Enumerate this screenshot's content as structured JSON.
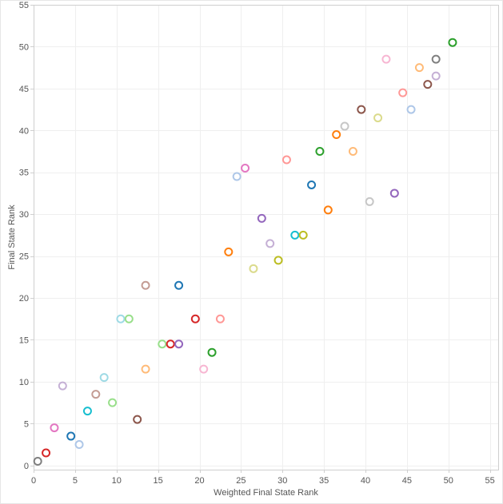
{
  "chart_data": {
    "type": "scatter",
    "xlabel": "Weighted Final State Rank",
    "ylabel": "Final State Rank",
    "xlim": [
      0,
      56
    ],
    "ylim": [
      -0.5,
      55
    ],
    "xticks": [
      0,
      5,
      10,
      15,
      20,
      25,
      30,
      35,
      40,
      45,
      50,
      55
    ],
    "yticks": [
      0,
      5,
      10,
      15,
      20,
      25,
      30,
      35,
      40,
      45,
      50,
      55
    ],
    "grid": true,
    "marker": "hollow-circle",
    "points": [
      {
        "x": 0.5,
        "y": 0.5,
        "color": "#7f7f7f"
      },
      {
        "x": 1.5,
        "y": 1.5,
        "color": "#d62728"
      },
      {
        "x": 2.5,
        "y": 4.5,
        "color": "#e377c2"
      },
      {
        "x": 3.5,
        "y": 9.5,
        "color": "#c5b0d5"
      },
      {
        "x": 4.5,
        "y": 3.5,
        "color": "#1f77b4"
      },
      {
        "x": 5.5,
        "y": 2.5,
        "color": "#aec7e8"
      },
      {
        "x": 6.5,
        "y": 6.5,
        "color": "#17becf"
      },
      {
        "x": 7.5,
        "y": 8.5,
        "color": "#c49c94"
      },
      {
        "x": 8.5,
        "y": 10.5,
        "color": "#9edae5"
      },
      {
        "x": 9.5,
        "y": 7.5,
        "color": "#98df8a"
      },
      {
        "x": 10.5,
        "y": 17.5,
        "color": "#9edae5"
      },
      {
        "x": 11.5,
        "y": 17.5,
        "color": "#98df8a"
      },
      {
        "x": 12.5,
        "y": 5.5,
        "color": "#8c564b"
      },
      {
        "x": 13.5,
        "y": 21.5,
        "color": "#c49c94"
      },
      {
        "x": 13.5,
        "y": 11.5,
        "color": "#ffbb78"
      },
      {
        "x": 15.5,
        "y": 14.5,
        "color": "#98df8a"
      },
      {
        "x": 16.5,
        "y": 14.5,
        "color": "#d62728"
      },
      {
        "x": 17.5,
        "y": 14.5,
        "color": "#9467bd"
      },
      {
        "x": 17.5,
        "y": 21.5,
        "color": "#1f77b4"
      },
      {
        "x": 19.5,
        "y": 17.5,
        "color": "#d62728"
      },
      {
        "x": 20.5,
        "y": 11.5,
        "color": "#f7b6d2"
      },
      {
        "x": 21.5,
        "y": 13.5,
        "color": "#2ca02c"
      },
      {
        "x": 22.5,
        "y": 17.5,
        "color": "#ff9896"
      },
      {
        "x": 23.5,
        "y": 25.5,
        "color": "#ff7f0e"
      },
      {
        "x": 24.5,
        "y": 34.5,
        "color": "#aec7e8"
      },
      {
        "x": 25.5,
        "y": 35.5,
        "color": "#e377c2"
      },
      {
        "x": 26.5,
        "y": 23.5,
        "color": "#dbdb8d"
      },
      {
        "x": 27.5,
        "y": 29.5,
        "color": "#9467bd"
      },
      {
        "x": 28.5,
        "y": 26.5,
        "color": "#c5b0d5"
      },
      {
        "x": 29.5,
        "y": 24.5,
        "color": "#bcbd22"
      },
      {
        "x": 30.5,
        "y": 36.5,
        "color": "#ff9896"
      },
      {
        "x": 31.5,
        "y": 27.5,
        "color": "#17becf"
      },
      {
        "x": 32.5,
        "y": 27.5,
        "color": "#bcbd22"
      },
      {
        "x": 33.5,
        "y": 33.5,
        "color": "#1f77b4"
      },
      {
        "x": 34.5,
        "y": 37.5,
        "color": "#2ca02c"
      },
      {
        "x": 35.5,
        "y": 30.5,
        "color": "#ff7f0e"
      },
      {
        "x": 36.5,
        "y": 39.5,
        "color": "#ff7f0e"
      },
      {
        "x": 37.5,
        "y": 40.5,
        "color": "#c7c7c7"
      },
      {
        "x": 38.5,
        "y": 37.5,
        "color": "#ffbb78"
      },
      {
        "x": 39.5,
        "y": 42.5,
        "color": "#8c564b"
      },
      {
        "x": 40.5,
        "y": 31.5,
        "color": "#c7c7c7"
      },
      {
        "x": 41.5,
        "y": 41.5,
        "color": "#dbdb8d"
      },
      {
        "x": 42.5,
        "y": 48.5,
        "color": "#f7b6d2"
      },
      {
        "x": 43.5,
        "y": 32.5,
        "color": "#9467bd"
      },
      {
        "x": 44.5,
        "y": 44.5,
        "color": "#ff9896"
      },
      {
        "x": 45.5,
        "y": 42.5,
        "color": "#aec7e8"
      },
      {
        "x": 46.5,
        "y": 47.5,
        "color": "#ffbb78"
      },
      {
        "x": 47.5,
        "y": 45.5,
        "color": "#8c564b"
      },
      {
        "x": 48.5,
        "y": 46.5,
        "color": "#c5b0d5"
      },
      {
        "x": 48.5,
        "y": 48.5,
        "color": "#7f7f7f"
      },
      {
        "x": 50.5,
        "y": 50.5,
        "color": "#2ca02c"
      }
    ]
  }
}
